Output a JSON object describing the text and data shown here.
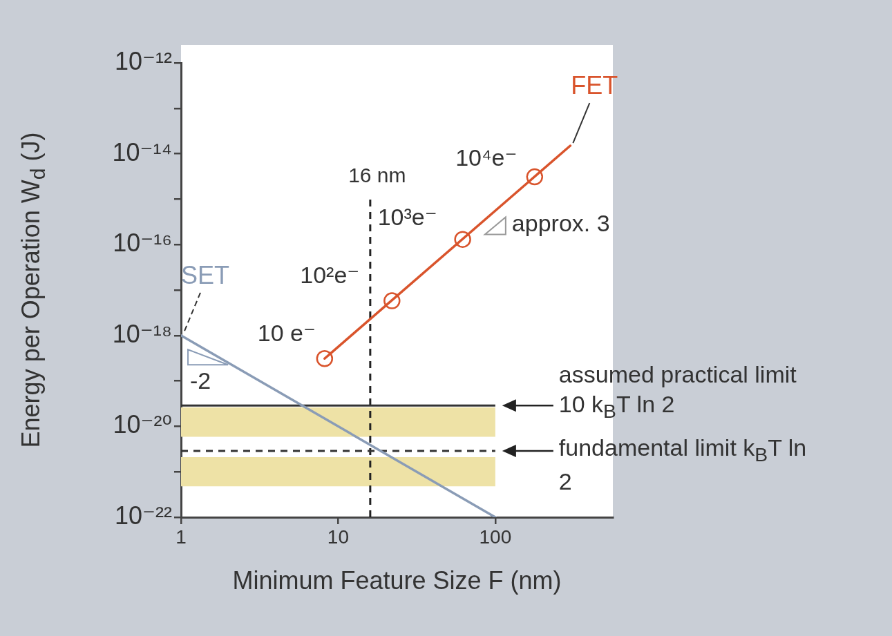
{
  "chart_data": {
    "type": "line",
    "xlabel": "Minimum Feature Size F (nm)",
    "ylabel": "Energy per Operation W$_{d}$ (J)",
    "log": "xy",
    "xlim": [
      1,
      560
    ],
    "xticks": [
      1,
      10,
      100
    ],
    "ylim": [
      1e-22,
      1e-12
    ],
    "yticks": [
      {
        "value": 1e-22,
        "label": "10⁻²²"
      },
      {
        "value": 1e-21,
        "label": null
      },
      {
        "value": 1e-20,
        "label": "10⁻²⁰"
      },
      {
        "value": 1e-19,
        "label": null
      },
      {
        "value": 1e-18,
        "label": "10⁻¹⁸"
      },
      {
        "value": 1e-17,
        "label": null
      },
      {
        "value": 1e-16,
        "label": "10⁻¹⁶"
      },
      {
        "value": 1e-15,
        "label": null
      },
      {
        "value": 1e-14,
        "label": "10⁻¹⁴"
      },
      {
        "value": 1e-13,
        "label": null
      },
      {
        "value": 1e-12,
        "label": "10⁻¹²"
      }
    ],
    "grid": false,
    "legend": false,
    "line_style": "solid",
    "series": [
      {
        "name": "FET",
        "color": "#d9542c",
        "marker": "none",
        "x": [
          8.2,
          300
        ],
        "values": [
          3.1e-19,
          1.5e-14
        ]
      },
      {
        "type": "scatter",
        "color": "#d9542c",
        "marker": "circle",
        "x": [
          8.2,
          22,
          62,
          178
        ],
        "values": [
          3.1e-19,
          5.8e-18,
          1.3e-16,
          3.1e-15
        ]
      },
      {
        "name": "SET",
        "color": "#8a9cb6",
        "marker": "none",
        "x": [
          1,
          100
        ],
        "values": [
          1e-18,
          1e-22
        ]
      }
    ],
    "ref_lines": [
      {
        "axis": "x",
        "value": 16,
        "label": "16 nm",
        "color": "#222222",
        "line_style": "dashed"
      },
      {
        "axis": "y",
        "value": 2.87e-20,
        "label": "assumed practical limit 10 k$_{B}$T ln 2",
        "color": "#333333",
        "line_style": "solid"
      },
      {
        "axis": "y",
        "value": 2.87e-21,
        "label": "fundamental limit k$_{B}$T ln 2",
        "color": "#333333",
        "line_style": "dashed"
      }
    ],
    "bands": [
      {
        "axis": "y",
        "from": 5.9e-21,
        "to": 2.6e-20,
        "color": "#eee2a6"
      },
      {
        "axis": "y",
        "from": 4.8e-22,
        "to": 2.1e-21,
        "color": "#eee2a6"
      }
    ],
    "annotations": [
      {
        "text": "10 e⁻",
        "x": 8.2,
        "y": 3.1e-19
      },
      {
        "text": "10²e⁻",
        "x": 22,
        "y": 5.8e-18
      },
      {
        "text": "10³e⁻",
        "x": 62,
        "y": 1.3e-16
      },
      {
        "text": "10⁴e⁻",
        "x": 178,
        "y": 3.1e-15
      },
      {
        "text": "approx. 3",
        "x": 100,
        "y": 5.5e-16
      },
      {
        "text": "-2",
        "x": 1.5,
        "y": 4.4e-19
      }
    ]
  }
}
